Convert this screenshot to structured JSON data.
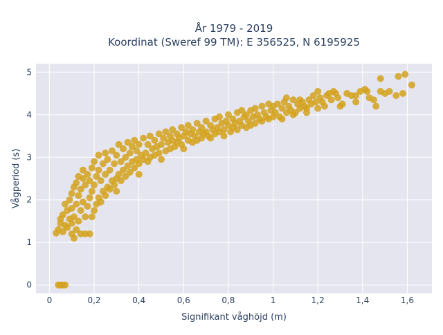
{
  "chart_data": {
    "type": "scatter",
    "title_line1": "År 1979 - 2019",
    "title_line2": "Koordinat (Sweref 99 TM): E 356525, N 6195925",
    "xlabel": "Signifikant våghöjd (m)",
    "ylabel": "Vågperiod (s)",
    "xlim": [
      -0.06,
      1.71
    ],
    "ylim": [
      -0.2,
      5.2
    ],
    "x_ticks": [
      {
        "value": 0,
        "label": "0"
      },
      {
        "value": 0.2,
        "label": "0,2"
      },
      {
        "value": 0.4,
        "label": "0,4"
      },
      {
        "value": 0.6,
        "label": "0,6"
      },
      {
        "value": 0.8,
        "label": "0,8"
      },
      {
        "value": 1.0,
        "label": "1"
      },
      {
        "value": 1.2,
        "label": "1,2"
      },
      {
        "value": 1.4,
        "label": "1,4"
      },
      {
        "value": 1.6,
        "label": "1,6"
      }
    ],
    "y_ticks": [
      {
        "value": 0,
        "label": "0"
      },
      {
        "value": 1,
        "label": "1"
      },
      {
        "value": 2,
        "label": "2"
      },
      {
        "value": 3,
        "label": "3"
      },
      {
        "value": 4,
        "label": "4"
      },
      {
        "value": 5,
        "label": "5"
      }
    ],
    "grid": true,
    "marker_color": "#d4a21c",
    "plot_bg": "#e5e5ef",
    "points": [
      [
        0.04,
        0.0
      ],
      [
        0.05,
        0.0
      ],
      [
        0.06,
        0.0
      ],
      [
        0.07,
        0.0
      ],
      [
        0.03,
        1.22
      ],
      [
        0.04,
        1.3
      ],
      [
        0.05,
        1.45
      ],
      [
        0.05,
        1.55
      ],
      [
        0.06,
        1.25
      ],
      [
        0.06,
        1.65
      ],
      [
        0.07,
        1.4
      ],
      [
        0.07,
        1.9
      ],
      [
        0.08,
        1.35
      ],
      [
        0.08,
        1.75
      ],
      [
        0.09,
        1.55
      ],
      [
        0.09,
        2.0
      ],
      [
        0.1,
        1.2
      ],
      [
        0.1,
        1.45
      ],
      [
        0.1,
        1.8
      ],
      [
        0.1,
        2.15
      ],
      [
        0.11,
        1.1
      ],
      [
        0.11,
        1.6
      ],
      [
        0.11,
        2.3
      ],
      [
        0.12,
        1.3
      ],
      [
        0.12,
        1.9
      ],
      [
        0.12,
        2.4
      ],
      [
        0.13,
        1.5
      ],
      [
        0.13,
        2.1
      ],
      [
        0.13,
        2.55
      ],
      [
        0.14,
        1.2
      ],
      [
        0.14,
        1.75
      ],
      [
        0.14,
        2.25
      ],
      [
        0.15,
        1.95
      ],
      [
        0.15,
        2.5
      ],
      [
        0.15,
        2.7
      ],
      [
        0.16,
        1.2
      ],
      [
        0.16,
        1.6
      ],
      [
        0.16,
        2.35
      ],
      [
        0.17,
        1.85
      ],
      [
        0.17,
        2.6
      ],
      [
        0.18,
        1.2
      ],
      [
        0.18,
        2.05
      ],
      [
        0.18,
        2.45
      ],
      [
        0.19,
        1.6
      ],
      [
        0.19,
        2.2
      ],
      [
        0.19,
        2.75
      ],
      [
        0.2,
        1.75
      ],
      [
        0.2,
        2.35
      ],
      [
        0.2,
        2.9
      ],
      [
        0.21,
        1.9
      ],
      [
        0.21,
        2.55
      ],
      [
        0.22,
        2.05
      ],
      [
        0.22,
        2.7
      ],
      [
        0.22,
        3.05
      ],
      [
        0.23,
        1.95
      ],
      [
        0.23,
        2.45
      ],
      [
        0.24,
        2.2
      ],
      [
        0.24,
        2.85
      ],
      [
        0.25,
        2.1
      ],
      [
        0.25,
        2.6
      ],
      [
        0.25,
        3.1
      ],
      [
        0.26,
        2.3
      ],
      [
        0.26,
        2.95
      ],
      [
        0.27,
        2.25
      ],
      [
        0.27,
        2.7
      ],
      [
        0.28,
        2.45
      ],
      [
        0.28,
        3.15
      ],
      [
        0.29,
        2.35
      ],
      [
        0.29,
        2.85
      ],
      [
        0.3,
        2.5
      ],
      [
        0.3,
        2.2
      ],
      [
        0.3,
        3.05
      ],
      [
        0.31,
        2.6
      ],
      [
        0.31,
        3.3
      ],
      [
        0.32,
        2.45
      ],
      [
        0.32,
        2.9
      ],
      [
        0.33,
        2.7
      ],
      [
        0.33,
        3.2
      ],
      [
        0.34,
        2.55
      ],
      [
        0.34,
        3.0
      ],
      [
        0.35,
        2.8
      ],
      [
        0.35,
        3.35
      ],
      [
        0.36,
        2.65
      ],
      [
        0.36,
        3.1
      ],
      [
        0.37,
        2.9
      ],
      [
        0.37,
        3.25
      ],
      [
        0.38,
        2.75
      ],
      [
        0.38,
        3.4
      ],
      [
        0.39,
        2.95
      ],
      [
        0.39,
        3.15
      ],
      [
        0.4,
        2.85
      ],
      [
        0.4,
        3.3
      ],
      [
        0.4,
        2.6
      ],
      [
        0.41,
        3.05
      ],
      [
        0.42,
        2.95
      ],
      [
        0.42,
        3.45
      ],
      [
        0.43,
        3.1
      ],
      [
        0.44,
        2.9
      ],
      [
        0.44,
        3.3
      ],
      [
        0.45,
        3.0
      ],
      [
        0.45,
        3.5
      ],
      [
        0.46,
        3.2
      ],
      [
        0.47,
        3.05
      ],
      [
        0.47,
        3.4
      ],
      [
        0.48,
        3.25
      ],
      [
        0.49,
        3.1
      ],
      [
        0.49,
        3.55
      ],
      [
        0.5,
        3.3
      ],
      [
        0.5,
        2.95
      ],
      [
        0.51,
        3.45
      ],
      [
        0.52,
        3.15
      ],
      [
        0.52,
        3.6
      ],
      [
        0.53,
        3.35
      ],
      [
        0.54,
        3.2
      ],
      [
        0.54,
        3.5
      ],
      [
        0.55,
        3.4
      ],
      [
        0.55,
        3.65
      ],
      [
        0.56,
        3.25
      ],
      [
        0.57,
        3.55
      ],
      [
        0.57,
        3.35
      ],
      [
        0.58,
        3.45
      ],
      [
        0.59,
        3.3
      ],
      [
        0.59,
        3.7
      ],
      [
        0.6,
        3.5
      ],
      [
        0.6,
        3.2
      ],
      [
        0.61,
        3.6
      ],
      [
        0.62,
        3.4
      ],
      [
        0.62,
        3.75
      ],
      [
        0.63,
        3.55
      ],
      [
        0.64,
        3.35
      ],
      [
        0.64,
        3.65
      ],
      [
        0.65,
        3.5
      ],
      [
        0.66,
        3.8
      ],
      [
        0.66,
        3.4
      ],
      [
        0.67,
        3.6
      ],
      [
        0.68,
        3.7
      ],
      [
        0.68,
        3.45
      ],
      [
        0.69,
        3.55
      ],
      [
        0.7,
        3.85
      ],
      [
        0.7,
        3.6
      ],
      [
        0.71,
        3.5
      ],
      [
        0.72,
        3.75
      ],
      [
        0.72,
        3.45
      ],
      [
        0.73,
        3.65
      ],
      [
        0.74,
        3.9
      ],
      [
        0.74,
        3.55
      ],
      [
        0.75,
        3.7
      ],
      [
        0.76,
        3.6
      ],
      [
        0.76,
        3.95
      ],
      [
        0.77,
        3.8
      ],
      [
        0.78,
        3.65
      ],
      [
        0.78,
        3.5
      ],
      [
        0.79,
        3.85
      ],
      [
        0.8,
        3.75
      ],
      [
        0.8,
        4.0
      ],
      [
        0.81,
        3.6
      ],
      [
        0.82,
        3.9
      ],
      [
        0.82,
        3.7
      ],
      [
        0.83,
        3.8
      ],
      [
        0.84,
        4.05
      ],
      [
        0.84,
        3.65
      ],
      [
        0.85,
        3.85
      ],
      [
        0.86,
        3.75
      ],
      [
        0.86,
        4.1
      ],
      [
        0.87,
        3.95
      ],
      [
        0.88,
        3.7
      ],
      [
        0.88,
        4.0
      ],
      [
        0.89,
        3.85
      ],
      [
        0.9,
        4.1
      ],
      [
        0.9,
        3.75
      ],
      [
        0.91,
        3.95
      ],
      [
        0.92,
        4.15
      ],
      [
        0.92,
        3.8
      ],
      [
        0.93,
        4.0
      ],
      [
        0.94,
        3.9
      ],
      [
        0.95,
        4.2
      ],
      [
        0.95,
        3.85
      ],
      [
        0.96,
        4.05
      ],
      [
        0.97,
        3.95
      ],
      [
        0.98,
        4.25
      ],
      [
        0.98,
        3.9
      ],
      [
        0.99,
        4.1
      ],
      [
        1.0,
        4.2
      ],
      [
        1.0,
        3.95
      ],
      [
        1.01,
        4.05
      ],
      [
        1.02,
        4.25
      ],
      [
        1.03,
        3.95
      ],
      [
        1.04,
        4.15
      ],
      [
        1.05,
        4.3
      ],
      [
        1.06,
        4.05
      ],
      [
        1.07,
        4.2
      ],
      [
        1.08,
        4.1
      ],
      [
        1.09,
        4.35
      ],
      [
        1.1,
        4.05
      ],
      [
        1.11,
        4.25
      ],
      [
        1.12,
        4.15
      ],
      [
        1.13,
        4.3
      ],
      [
        1.14,
        4.2
      ],
      [
        1.15,
        4.05
      ],
      [
        1.16,
        4.35
      ],
      [
        1.17,
        4.25
      ],
      [
        1.18,
        4.45
      ],
      [
        1.19,
        4.3
      ],
      [
        1.2,
        4.15
      ],
      [
        1.21,
        4.4
      ],
      [
        1.22,
        4.3
      ],
      [
        1.23,
        4.2
      ],
      [
        1.24,
        4.45
      ],
      [
        1.25,
        4.5
      ],
      [
        1.26,
        4.35
      ],
      [
        1.27,
        4.55
      ],
      [
        1.29,
        4.4
      ],
      [
        1.31,
        4.25
      ],
      [
        1.33,
        4.5
      ],
      [
        1.35,
        4.45
      ],
      [
        1.37,
        4.3
      ],
      [
        1.39,
        4.55
      ],
      [
        1.41,
        4.6
      ],
      [
        1.43,
        4.4
      ],
      [
        1.45,
        4.35
      ],
      [
        1.48,
        4.55
      ],
      [
        1.5,
        4.5
      ],
      [
        1.52,
        4.55
      ],
      [
        1.55,
        4.45
      ],
      [
        1.58,
        4.5
      ],
      [
        1.48,
        4.85
      ],
      [
        1.56,
        4.9
      ],
      [
        1.59,
        4.95
      ],
      [
        1.62,
        4.7
      ],
      [
        1.46,
        4.2
      ],
      [
        1.37,
        4.45
      ],
      [
        1.28,
        4.5
      ],
      [
        1.42,
        4.55
      ],
      [
        1.15,
        4.15
      ],
      [
        1.12,
        4.35
      ],
      [
        1.2,
        4.55
      ],
      [
        1.3,
        4.2
      ],
      [
        1.09,
        4.0
      ],
      [
        1.06,
        4.4
      ],
      [
        1.04,
        3.9
      ]
    ]
  }
}
